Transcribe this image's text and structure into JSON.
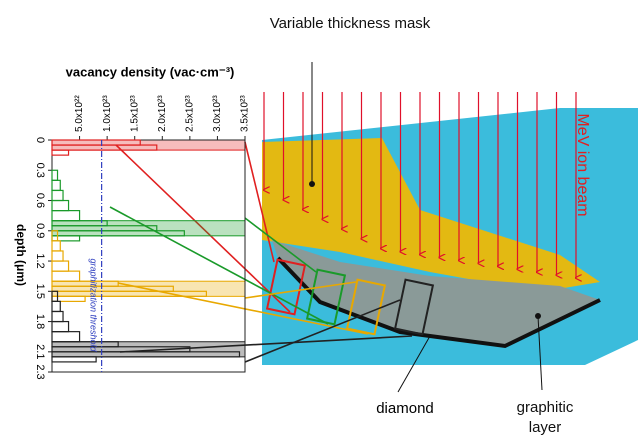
{
  "chart_data": {
    "type": "histogram",
    "title": "vacancy density (vac·cm⁻³)",
    "y_label": "depth (μm)",
    "xlim": [
      0,
      3.5e+23
    ],
    "xticks": [
      {
        "value": 5e+22,
        "label": "5.0x10²²"
      },
      {
        "value": 1e+23,
        "label": "1.0x10²³"
      },
      {
        "value": 1.5e+23,
        "label": "1.5x10²³"
      },
      {
        "value": 2e+23,
        "label": "2.0x10²³"
      },
      {
        "value": 2.5e+23,
        "label": "2.5x10²³"
      },
      {
        "value": 3e+23,
        "label": "3.0x10²³"
      },
      {
        "value": 3.5e+23,
        "label": "3.5x10²³"
      }
    ],
    "ylim": [
      0,
      2.3
    ],
    "yticks": [
      0,
      0.3,
      0.6,
      0.9,
      1.2,
      1.5,
      1.8,
      2.1,
      2.3
    ],
    "threshold": 9e+22,
    "threshold_label": "graphitization threshold",
    "series": [
      {
        "color": "#e02020",
        "bins": [
          0,
          0.05,
          0.1,
          0.15
        ],
        "values": [
          1.6e+23,
          1.9e+23,
          3e+22
        ]
      },
      {
        "color": "#1a9a2a",
        "bins": [
          0.3,
          0.4,
          0.5,
          0.6,
          0.7,
          0.8,
          0.85,
          0.9,
          0.95,
          1.0
        ],
        "values": [
          1e+22,
          1.5e+22,
          2e+22,
          3e+22,
          5e+22,
          1e+23,
          1.9e+23,
          2.4e+23,
          5e+22
        ]
      },
      {
        "color": "#e8a800",
        "bins": [
          0.9,
          1.0,
          1.1,
          1.2,
          1.3,
          1.4,
          1.45,
          1.5,
          1.55,
          1.6
        ],
        "values": [
          1e+22,
          1.5e+22,
          2e+22,
          3e+22,
          5e+22,
          1.2e+23,
          2.2e+23,
          2.8e+23,
          6e+22
        ]
      },
      {
        "color": "#222222",
        "bins": [
          1.5,
          1.6,
          1.7,
          1.8,
          1.9,
          2.0,
          2.05,
          2.1,
          2.15,
          2.2
        ],
        "values": [
          1e+22,
          1.5e+22,
          2e+22,
          3e+22,
          5e+22,
          1.2e+23,
          2.5e+23,
          3.4e+23,
          8e+22
        ]
      }
    ],
    "annotations": {
      "mask": "Variable thickness mask",
      "beam": "MeV ion beam",
      "diamond": "diamond",
      "graphitic": "graphitic layer"
    }
  }
}
